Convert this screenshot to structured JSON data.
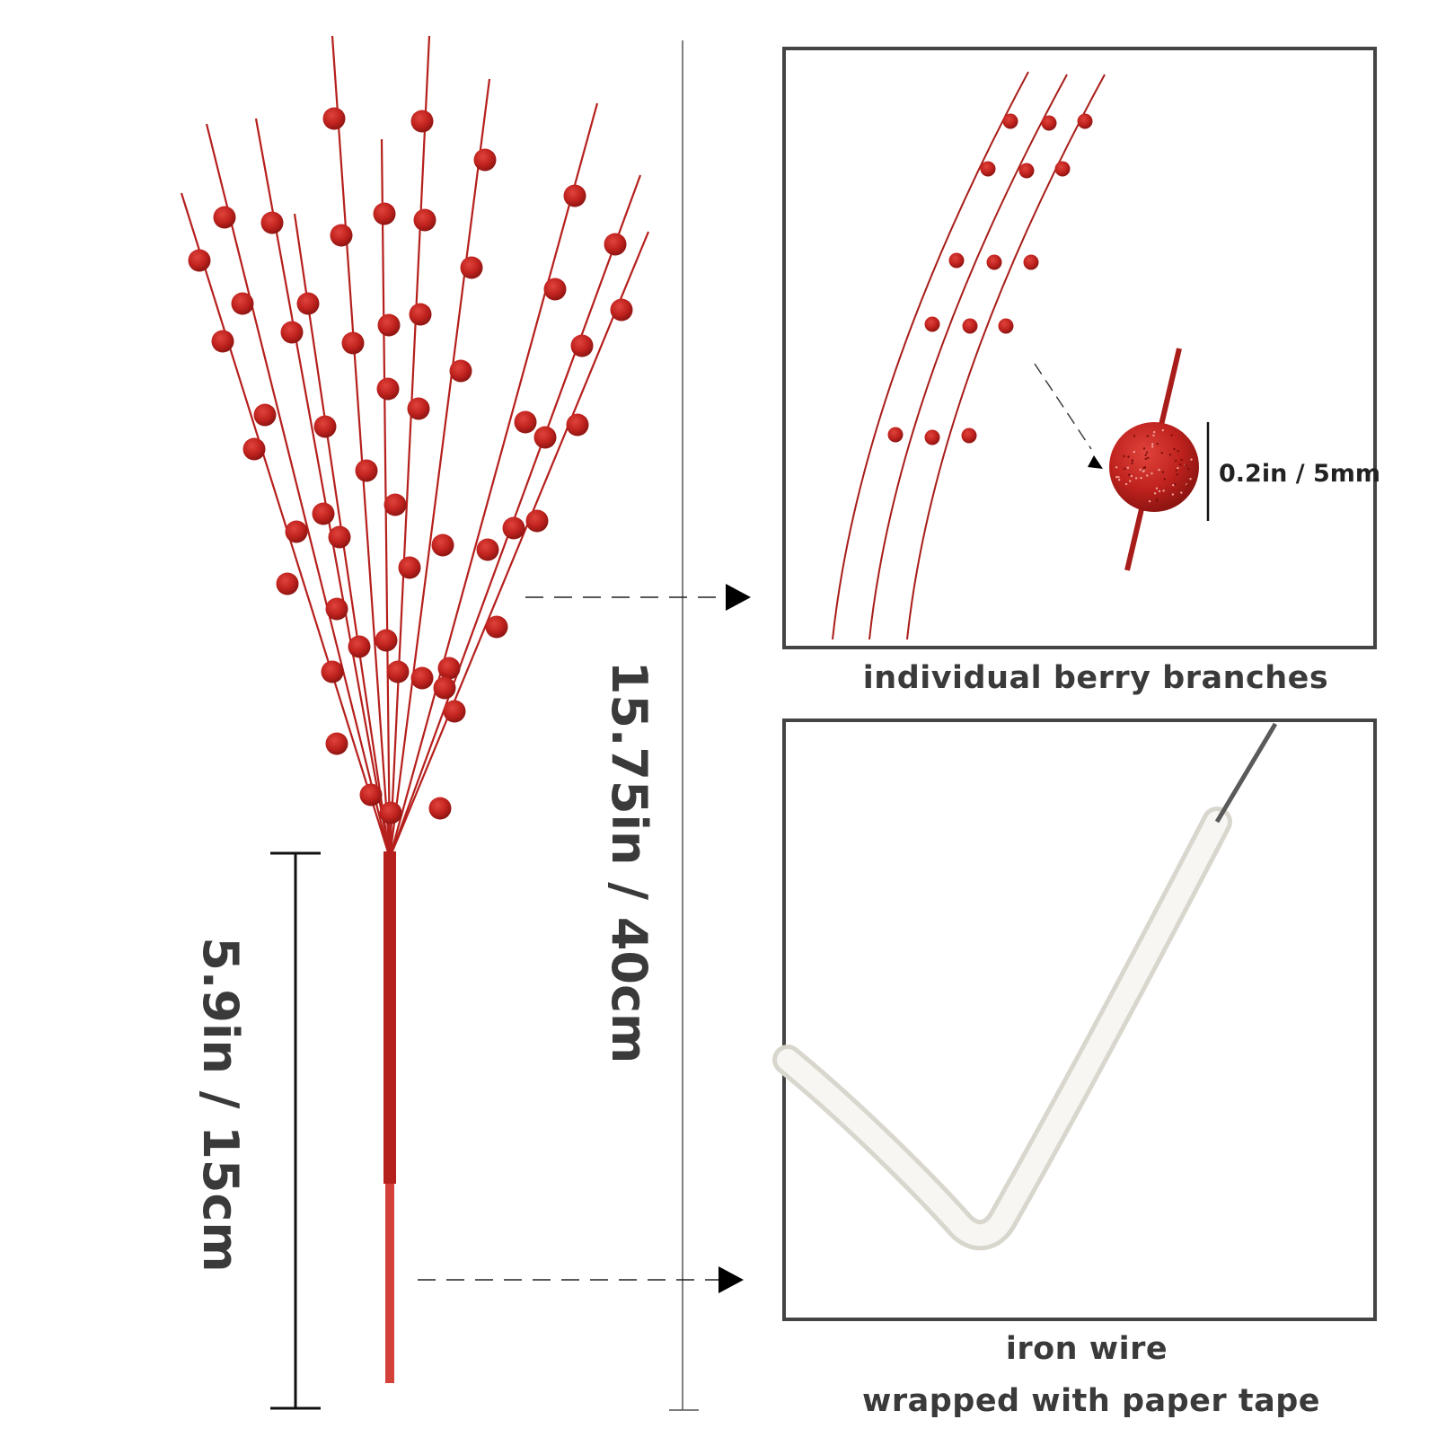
{
  "measurements": {
    "full_length": "15.75in / 40cm",
    "stem_length": "5.9in / 15cm",
    "berry_size": "0.2in / 5mm"
  },
  "captions": {
    "detail_top": "individual berry branches",
    "detail_bottom_line1": "iron wire",
    "detail_bottom_line2": "wrapped with paper tape"
  },
  "colors": {
    "berry": "#c0221e",
    "stem": "#b51f1c",
    "frame": "#444444",
    "wire_tape": "#f3f2ee"
  }
}
